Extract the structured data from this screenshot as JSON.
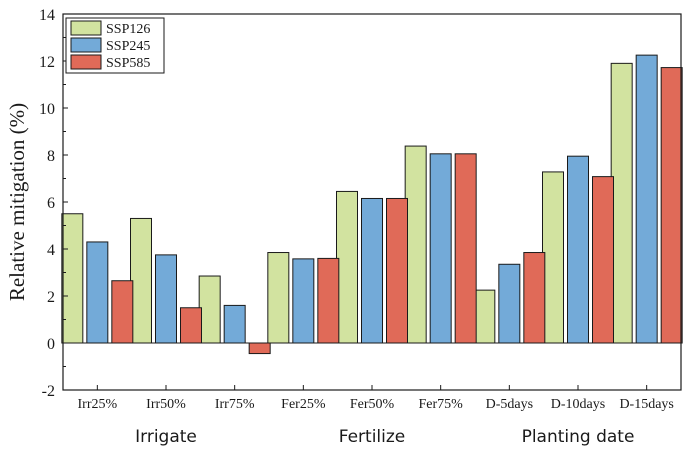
{
  "chart_data": {
    "type": "bar",
    "title": "",
    "ylabel": "Relative mitigation (%)",
    "xlabel": "",
    "ylim": [
      -2,
      14
    ],
    "yticks": [
      -2,
      0,
      2,
      4,
      6,
      8,
      10,
      12,
      14
    ],
    "categories": [
      "Irr25%",
      "Irr50%",
      "Irr75%",
      "Fer25%",
      "Fer50%",
      "Fer75%",
      "D-5days",
      "D-10days",
      "D-15days"
    ],
    "groups": [
      {
        "label": "Irrigate",
        "from": 0,
        "to": 2
      },
      {
        "label": "Fertilize",
        "from": 3,
        "to": 5
      },
      {
        "label": "Planting date",
        "from": 6,
        "to": 8
      }
    ],
    "legend_position": "top-left",
    "series": [
      {
        "name": "SSP126",
        "color": "#d2e3a0",
        "values": [
          5.5,
          5.3,
          2.85,
          3.85,
          6.45,
          8.38,
          2.25,
          7.28,
          11.9
        ]
      },
      {
        "name": "SSP245",
        "color": "#73aad8",
        "values": [
          4.3,
          3.75,
          1.6,
          3.58,
          6.15,
          8.05,
          3.35,
          7.95,
          12.25
        ]
      },
      {
        "name": "SSP585",
        "color": "#e06a58",
        "values": [
          2.65,
          1.5,
          -0.45,
          3.6,
          6.15,
          8.05,
          3.85,
          7.08,
          11.72
        ]
      }
    ]
  }
}
